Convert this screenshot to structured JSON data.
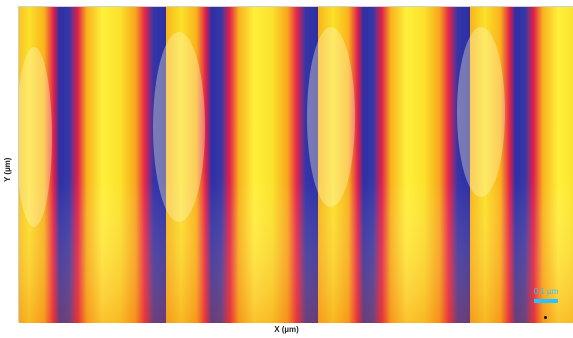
{
  "axes": {
    "x_label": "X (µm)",
    "y_label": "Y (µm)"
  },
  "scale_bar": {
    "label": "0.1 µm",
    "color": "#29c4ff"
  },
  "colormap": [
    "#2a2fa8",
    "#6a3aa6",
    "#e0204a",
    "#f36a1a",
    "#f8b41c",
    "#fff23a",
    "#fbf9a0"
  ]
}
